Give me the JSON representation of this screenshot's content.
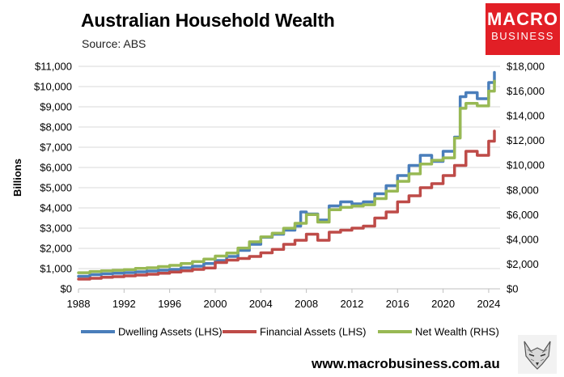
{
  "header": {
    "title": "Australian Household Wealth",
    "subtitle": "Source: ABS"
  },
  "logo": {
    "line1": "MACRO",
    "line2": "BUSINESS"
  },
  "footer": {
    "url": "www.macrobusiness.com.au"
  },
  "chart_data": {
    "type": "line",
    "ylabel": "Billions",
    "left_axis": {
      "min": 0,
      "max": 11000,
      "step": 1000,
      "prefix": "$"
    },
    "right_axis": {
      "min": 0,
      "max": 18000,
      "step": 2000,
      "prefix": "$"
    },
    "x_axis": {
      "min": 1988,
      "max": 2025,
      "ticks": [
        1988,
        1992,
        1996,
        2000,
        2004,
        2008,
        2012,
        2016,
        2020,
        2024
      ]
    },
    "grid": "horizontal",
    "legend_position": "bottom",
    "colors": {
      "dwelling": "#4a7ebb",
      "financial": "#be4b48",
      "net": "#98b954"
    },
    "series": [
      {
        "name": "Dwelling Assets (LHS)",
        "axis": "left",
        "x": [
          1988,
          1989,
          1990,
          1991,
          1992,
          1993,
          1994,
          1995,
          1996,
          1997,
          1998,
          1999,
          2000,
          2001,
          2002,
          2003,
          2004,
          2005,
          2006,
          2007,
          2007.5,
          2008,
          2009,
          2010,
          2011,
          2012,
          2013,
          2014,
          2015,
          2016,
          2017,
          2018,
          2019,
          2020,
          2021,
          2021.5,
          2022,
          2023,
          2024,
          2024.5
        ],
        "values": [
          620,
          700,
          740,
          770,
          800,
          840,
          880,
          920,
          960,
          1040,
          1120,
          1250,
          1400,
          1600,
          1900,
          2200,
          2550,
          2700,
          2900,
          3100,
          3800,
          3700,
          3400,
          4100,
          4300,
          4200,
          4300,
          4700,
          5100,
          5600,
          6100,
          6600,
          6300,
          6800,
          7500,
          9500,
          9700,
          9400,
          10200,
          10700
        ]
      },
      {
        "name": "Financial Assets (LHS)",
        "axis": "left",
        "x": [
          1988,
          1989,
          1990,
          1991,
          1992,
          1993,
          1994,
          1995,
          1996,
          1997,
          1998,
          1999,
          2000,
          2001,
          2002,
          2003,
          2004,
          2005,
          2006,
          2007,
          2008,
          2009,
          2010,
          2011,
          2012,
          2013,
          2014,
          2015,
          2016,
          2017,
          2018,
          2019,
          2020,
          2021,
          2022,
          2023,
          2024,
          2024.5
        ],
        "values": [
          480,
          520,
          570,
          600,
          640,
          680,
          720,
          770,
          830,
          890,
          960,
          1030,
          1300,
          1420,
          1500,
          1600,
          1780,
          1950,
          2200,
          2400,
          2700,
          2400,
          2800,
          2900,
          3000,
          3100,
          3500,
          3800,
          4300,
          4600,
          5000,
          5200,
          5600,
          6100,
          6800,
          6600,
          7300,
          7800
        ]
      },
      {
        "name": "Net Wealth (RHS)",
        "axis": "right",
        "x": [
          1988,
          1989,
          1990,
          1991,
          1992,
          1993,
          1994,
          1995,
          1996,
          1997,
          1998,
          1999,
          2000,
          2001,
          2002,
          2003,
          2004,
          2005,
          2006,
          2007,
          2008,
          2009,
          2010,
          2011,
          2012,
          2013,
          2014,
          2015,
          2016,
          2017,
          2018,
          2019,
          2020,
          2021,
          2021.5,
          2022,
          2023,
          2024,
          2024.5
        ],
        "values": [
          1300,
          1400,
          1450,
          1500,
          1550,
          1650,
          1700,
          1800,
          1900,
          2050,
          2200,
          2400,
          2650,
          2900,
          3300,
          3800,
          4200,
          4500,
          4900,
          5300,
          6000,
          5400,
          6400,
          6600,
          6700,
          6800,
          7300,
          7900,
          8700,
          9300,
          10100,
          10400,
          10600,
          12200,
          14600,
          15000,
          14800,
          16000,
          16800
        ]
      }
    ]
  }
}
